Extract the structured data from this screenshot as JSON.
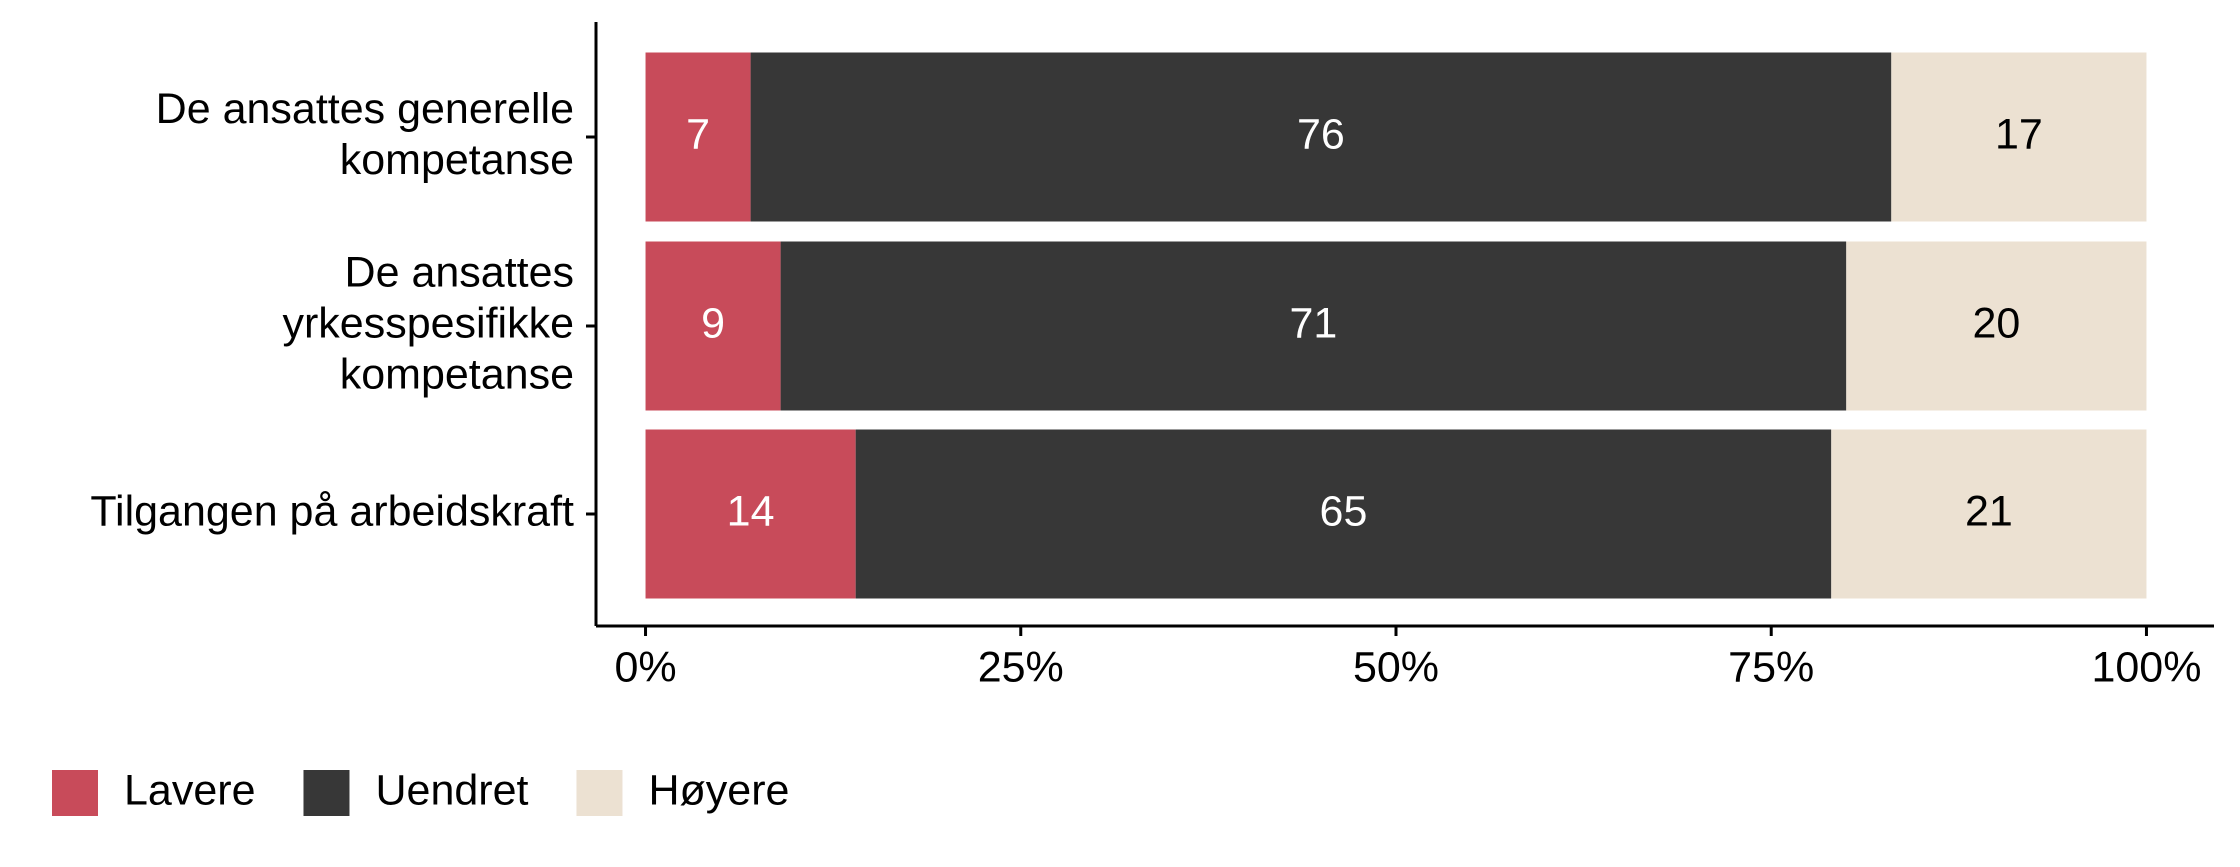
{
  "chart_data": {
    "type": "stacked_barh",
    "categories": [
      [
        "De ansattes generelle",
        "kompetanse"
      ],
      [
        "De ansattes",
        "yrkesspesifikke",
        "kompetanse"
      ],
      [
        "Tilgangen på arbeidskraft"
      ]
    ],
    "series": [
      {
        "name": "Lavere",
        "color": "#c84b5a",
        "label_color": "#ffffff",
        "values": [
          7,
          9,
          14
        ]
      },
      {
        "name": "Uendret",
        "color": "#373737",
        "label_color": "#ffffff",
        "values": [
          76,
          71,
          65
        ]
      },
      {
        "name": "Høyere",
        "color": "#ece1d2",
        "label_color": "#000000",
        "values": [
          17,
          20,
          21
        ]
      }
    ],
    "xlim": [
      -3.3,
      104.5
    ],
    "xticks": [
      {
        "value": 0,
        "label": "0%"
      },
      {
        "value": 25,
        "label": "25%"
      },
      {
        "value": 50,
        "label": "50%"
      },
      {
        "value": 75,
        "label": "75%"
      },
      {
        "value": 100,
        "label": "100%"
      }
    ],
    "legend": "bottom-left"
  }
}
